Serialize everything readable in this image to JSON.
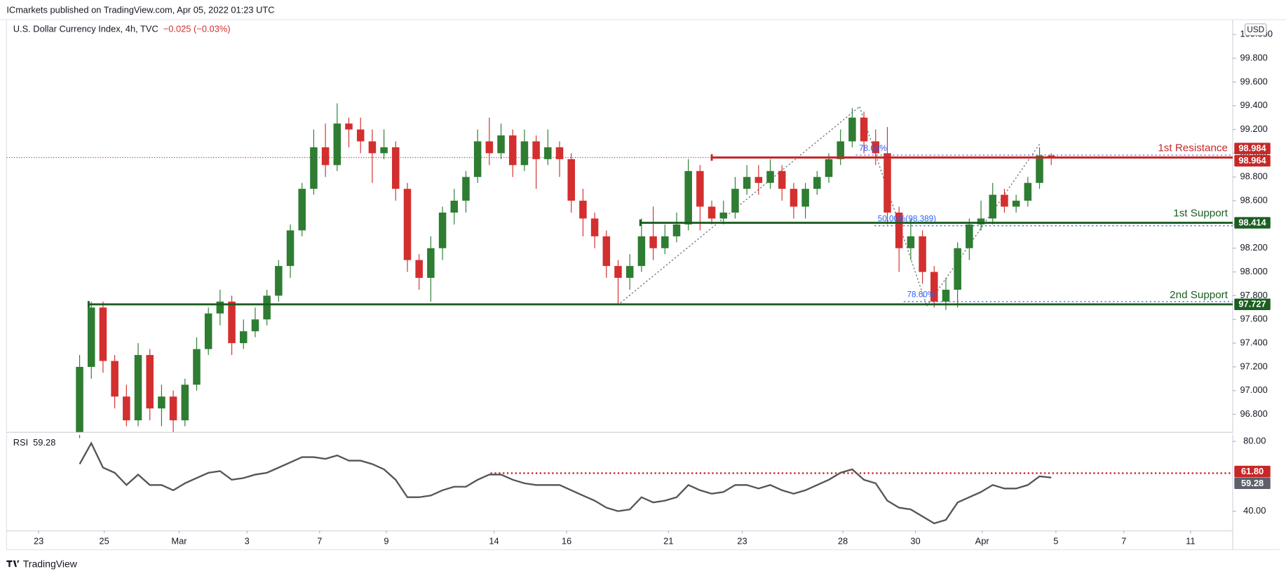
{
  "header": {
    "publisher": "ICmarkets published on TradingView.com, Apr 05, 2022 01:23 UTC",
    "footer": "TradingView"
  },
  "chart_data": {
    "type": "candlestick",
    "title": "U.S. Dollar Currency Index, 4h, TVC",
    "change": "−0.025 (−0.03%)",
    "currency": "USD",
    "up_color": "#2e7d32",
    "down_color": "#d32f2f",
    "open": [
      96.65,
      97.2,
      97.7,
      97.25,
      96.95,
      96.75,
      97.3,
      96.85,
      96.95,
      96.75,
      97.05,
      97.35,
      97.65,
      97.75,
      97.4,
      97.5,
      97.6,
      97.8,
      98.05,
      98.35,
      98.7,
      99.05,
      98.9,
      99.25,
      99.2,
      99.1,
      99.0,
      99.05,
      98.7,
      98.1,
      97.95,
      98.2,
      98.5,
      98.6,
      98.8,
      99.1,
      99.0,
      99.15,
      98.9,
      99.1,
      98.95,
      99.05,
      98.95,
      98.6,
      98.45,
      98.3,
      98.05,
      97.95,
      98.05,
      98.3,
      98.2,
      98.3,
      98.4,
      98.85,
      98.55,
      98.45,
      98.5,
      98.7,
      98.8,
      98.75,
      98.85,
      98.7,
      98.55,
      98.7,
      98.8,
      98.95,
      99.1,
      99.3,
      99.1,
      99.0,
      98.5,
      98.2,
      98.3,
      98.0,
      97.75,
      97.85,
      98.2,
      98.4,
      98.45,
      98.65,
      98.55,
      98.6,
      98.75,
      98.98
    ],
    "high": [
      97.3,
      97.75,
      97.75,
      97.3,
      97.05,
      97.4,
      97.35,
      97.05,
      97.0,
      97.1,
      97.45,
      97.7,
      97.85,
      97.8,
      97.6,
      97.7,
      97.85,
      98.1,
      98.4,
      98.75,
      99.2,
      99.25,
      99.42,
      99.3,
      99.3,
      99.2,
      99.2,
      99.1,
      98.75,
      98.15,
      98.3,
      98.55,
      98.7,
      98.85,
      99.2,
      99.3,
      99.25,
      99.2,
      99.2,
      99.15,
      99.2,
      99.1,
      99.0,
      98.7,
      98.5,
      98.35,
      98.1,
      98.15,
      98.45,
      98.55,
      98.4,
      98.5,
      98.95,
      98.9,
      98.6,
      98.6,
      98.8,
      98.9,
      98.9,
      98.95,
      98.9,
      98.75,
      98.75,
      98.85,
      99.0,
      99.2,
      99.38,
      99.35,
      99.2,
      99.22,
      98.55,
      98.45,
      98.35,
      98.05,
      97.95,
      98.25,
      98.45,
      98.6,
      98.75,
      98.7,
      98.65,
      98.8,
      99.05,
      99.0
    ],
    "low": [
      96.6,
      97.1,
      97.15,
      96.85,
      96.7,
      96.7,
      96.75,
      96.7,
      96.65,
      96.7,
      97.0,
      97.3,
      97.55,
      97.3,
      97.35,
      97.45,
      97.55,
      97.75,
      97.95,
      98.3,
      98.65,
      98.8,
      98.85,
      99.05,
      99.0,
      98.75,
      98.95,
      98.6,
      98.0,
      97.85,
      97.75,
      98.1,
      98.4,
      98.5,
      98.75,
      98.9,
      98.95,
      98.8,
      98.85,
      98.7,
      98.9,
      98.8,
      98.5,
      98.3,
      98.2,
      97.95,
      97.72,
      97.85,
      98.0,
      98.1,
      98.15,
      98.25,
      98.35,
      98.35,
      98.4,
      98.4,
      98.45,
      98.65,
      98.65,
      98.7,
      98.6,
      98.45,
      98.45,
      98.65,
      98.75,
      98.9,
      99.05,
      99.0,
      98.9,
      98.4,
      98.0,
      98.1,
      97.9,
      97.7,
      97.68,
      97.7,
      98.1,
      98.35,
      98.4,
      98.5,
      98.5,
      98.55,
      98.7,
      98.9
    ],
    "close": [
      97.2,
      97.7,
      97.25,
      96.95,
      96.75,
      97.3,
      96.85,
      96.95,
      96.75,
      97.05,
      97.35,
      97.65,
      97.75,
      97.4,
      97.5,
      97.6,
      97.8,
      98.05,
      98.35,
      98.7,
      99.05,
      98.9,
      99.25,
      99.2,
      99.1,
      99.0,
      99.05,
      98.7,
      98.1,
      97.95,
      98.2,
      98.5,
      98.6,
      98.8,
      99.1,
      99.0,
      99.15,
      98.9,
      99.1,
      98.95,
      99.05,
      98.95,
      98.6,
      98.45,
      98.3,
      98.05,
      97.95,
      98.05,
      98.3,
      98.2,
      98.3,
      98.4,
      98.85,
      98.55,
      98.45,
      98.5,
      98.7,
      98.8,
      98.75,
      98.85,
      98.7,
      98.55,
      98.7,
      98.8,
      98.95,
      99.1,
      99.3,
      99.1,
      99.0,
      98.5,
      98.2,
      98.3,
      98.0,
      97.75,
      97.85,
      98.2,
      98.4,
      98.45,
      98.65,
      98.55,
      98.6,
      98.75,
      98.98,
      98.964
    ],
    "xlim": [
      -6.24,
      98.5
    ],
    "xticks": [
      {
        "value": -3.5,
        "label": "23"
      },
      {
        "value": 2.1,
        "label": "25"
      },
      {
        "value": 8.5,
        "label": "Mar"
      },
      {
        "value": 14.3,
        "label": "3"
      },
      {
        "value": 20.5,
        "label": "7"
      },
      {
        "value": 26.2,
        "label": "9"
      },
      {
        "value": 35.4,
        "label": "14"
      },
      {
        "value": 41.6,
        "label": "16"
      },
      {
        "value": 50.3,
        "label": "21"
      },
      {
        "value": 56.6,
        "label": "23"
      },
      {
        "value": 65.2,
        "label": "28"
      },
      {
        "value": 71.4,
        "label": "30"
      },
      {
        "value": 77.1,
        "label": "Apr"
      },
      {
        "value": 83.4,
        "label": "5"
      },
      {
        "value": 89.2,
        "label": "7"
      },
      {
        "value": 94.9,
        "label": "11"
      }
    ],
    "ylim": [
      96.648,
      100.118
    ],
    "yticks": [
      {
        "value": 96.8,
        "label": "96.800"
      },
      {
        "value": 97.0,
        "label": "97.000"
      },
      {
        "value": 97.2,
        "label": "97.200"
      },
      {
        "value": 97.4,
        "label": "97.400"
      },
      {
        "value": 97.6,
        "label": "97.600"
      },
      {
        "value": 97.8,
        "label": "97.800"
      },
      {
        "value": 98.0,
        "label": "98.000"
      },
      {
        "value": 98.2,
        "label": "98.200"
      },
      {
        "value": 98.4,
        "label": "98.400"
      },
      {
        "value": 98.6,
        "label": "98.600"
      },
      {
        "value": 98.8,
        "label": "98.800"
      },
      {
        "value": 99.0,
        "label": "99.000"
      },
      {
        "value": 99.2,
        "label": "99.200"
      },
      {
        "value": 99.4,
        "label": "99.400"
      },
      {
        "value": 99.6,
        "label": "99.600"
      },
      {
        "value": 99.8,
        "label": "99.800"
      },
      {
        "value": 100.0,
        "label": "100.000"
      }
    ],
    "levels": [
      {
        "name": "1st Resistance",
        "value": 98.964,
        "color": "#c62828",
        "from": 54
      },
      {
        "name": "1st Support",
        "value": 98.414,
        "color": "#1b5e20",
        "from": 47.9
      },
      {
        "name": "2nd Support",
        "value": 97.727,
        "color": "#1b5e20",
        "from": 0.77
      }
    ],
    "fib_levels": [
      {
        "label": "78.60%",
        "value": 98.984,
        "from": 66.3,
        "badge_color": "#c62828"
      },
      {
        "label": "50.00%(98.389)",
        "value": 98.389,
        "from": 67.9
      },
      {
        "label": "78.60%",
        "value": 97.75,
        "from": 70.4
      }
    ],
    "fib_color": "#2962ff",
    "rsi": {
      "label": "RSI",
      "color": "#555555",
      "values": [
        67,
        79,
        65,
        62,
        55,
        61,
        55,
        55,
        52,
        56,
        59,
        62,
        63,
        58,
        59,
        61,
        62,
        65,
        68,
        71,
        71,
        70,
        72,
        69,
        69,
        67,
        64,
        58,
        48,
        48,
        49,
        52,
        54,
        54,
        58,
        61,
        61,
        58,
        56,
        55,
        55,
        55,
        52,
        49,
        46,
        42,
        40,
        41,
        48,
        45,
        46,
        48,
        55,
        52,
        50,
        51,
        55,
        55,
        53,
        55,
        52,
        50,
        52,
        55,
        58,
        62,
        64,
        58,
        56,
        46,
        42,
        41,
        37,
        33,
        35,
        45,
        48,
        51,
        55,
        53,
        53,
        55,
        60,
        59.28
      ],
      "ylim": [
        28.7,
        83.76
      ],
      "yticks": [
        {
          "value": 80,
          "label": "80.00"
        },
        {
          "value": 40,
          "label": "40.00"
        }
      ],
      "level": {
        "value": 61.8,
        "label": "61.80",
        "color": "#c62828",
        "from": 35.1
      }
    }
  }
}
